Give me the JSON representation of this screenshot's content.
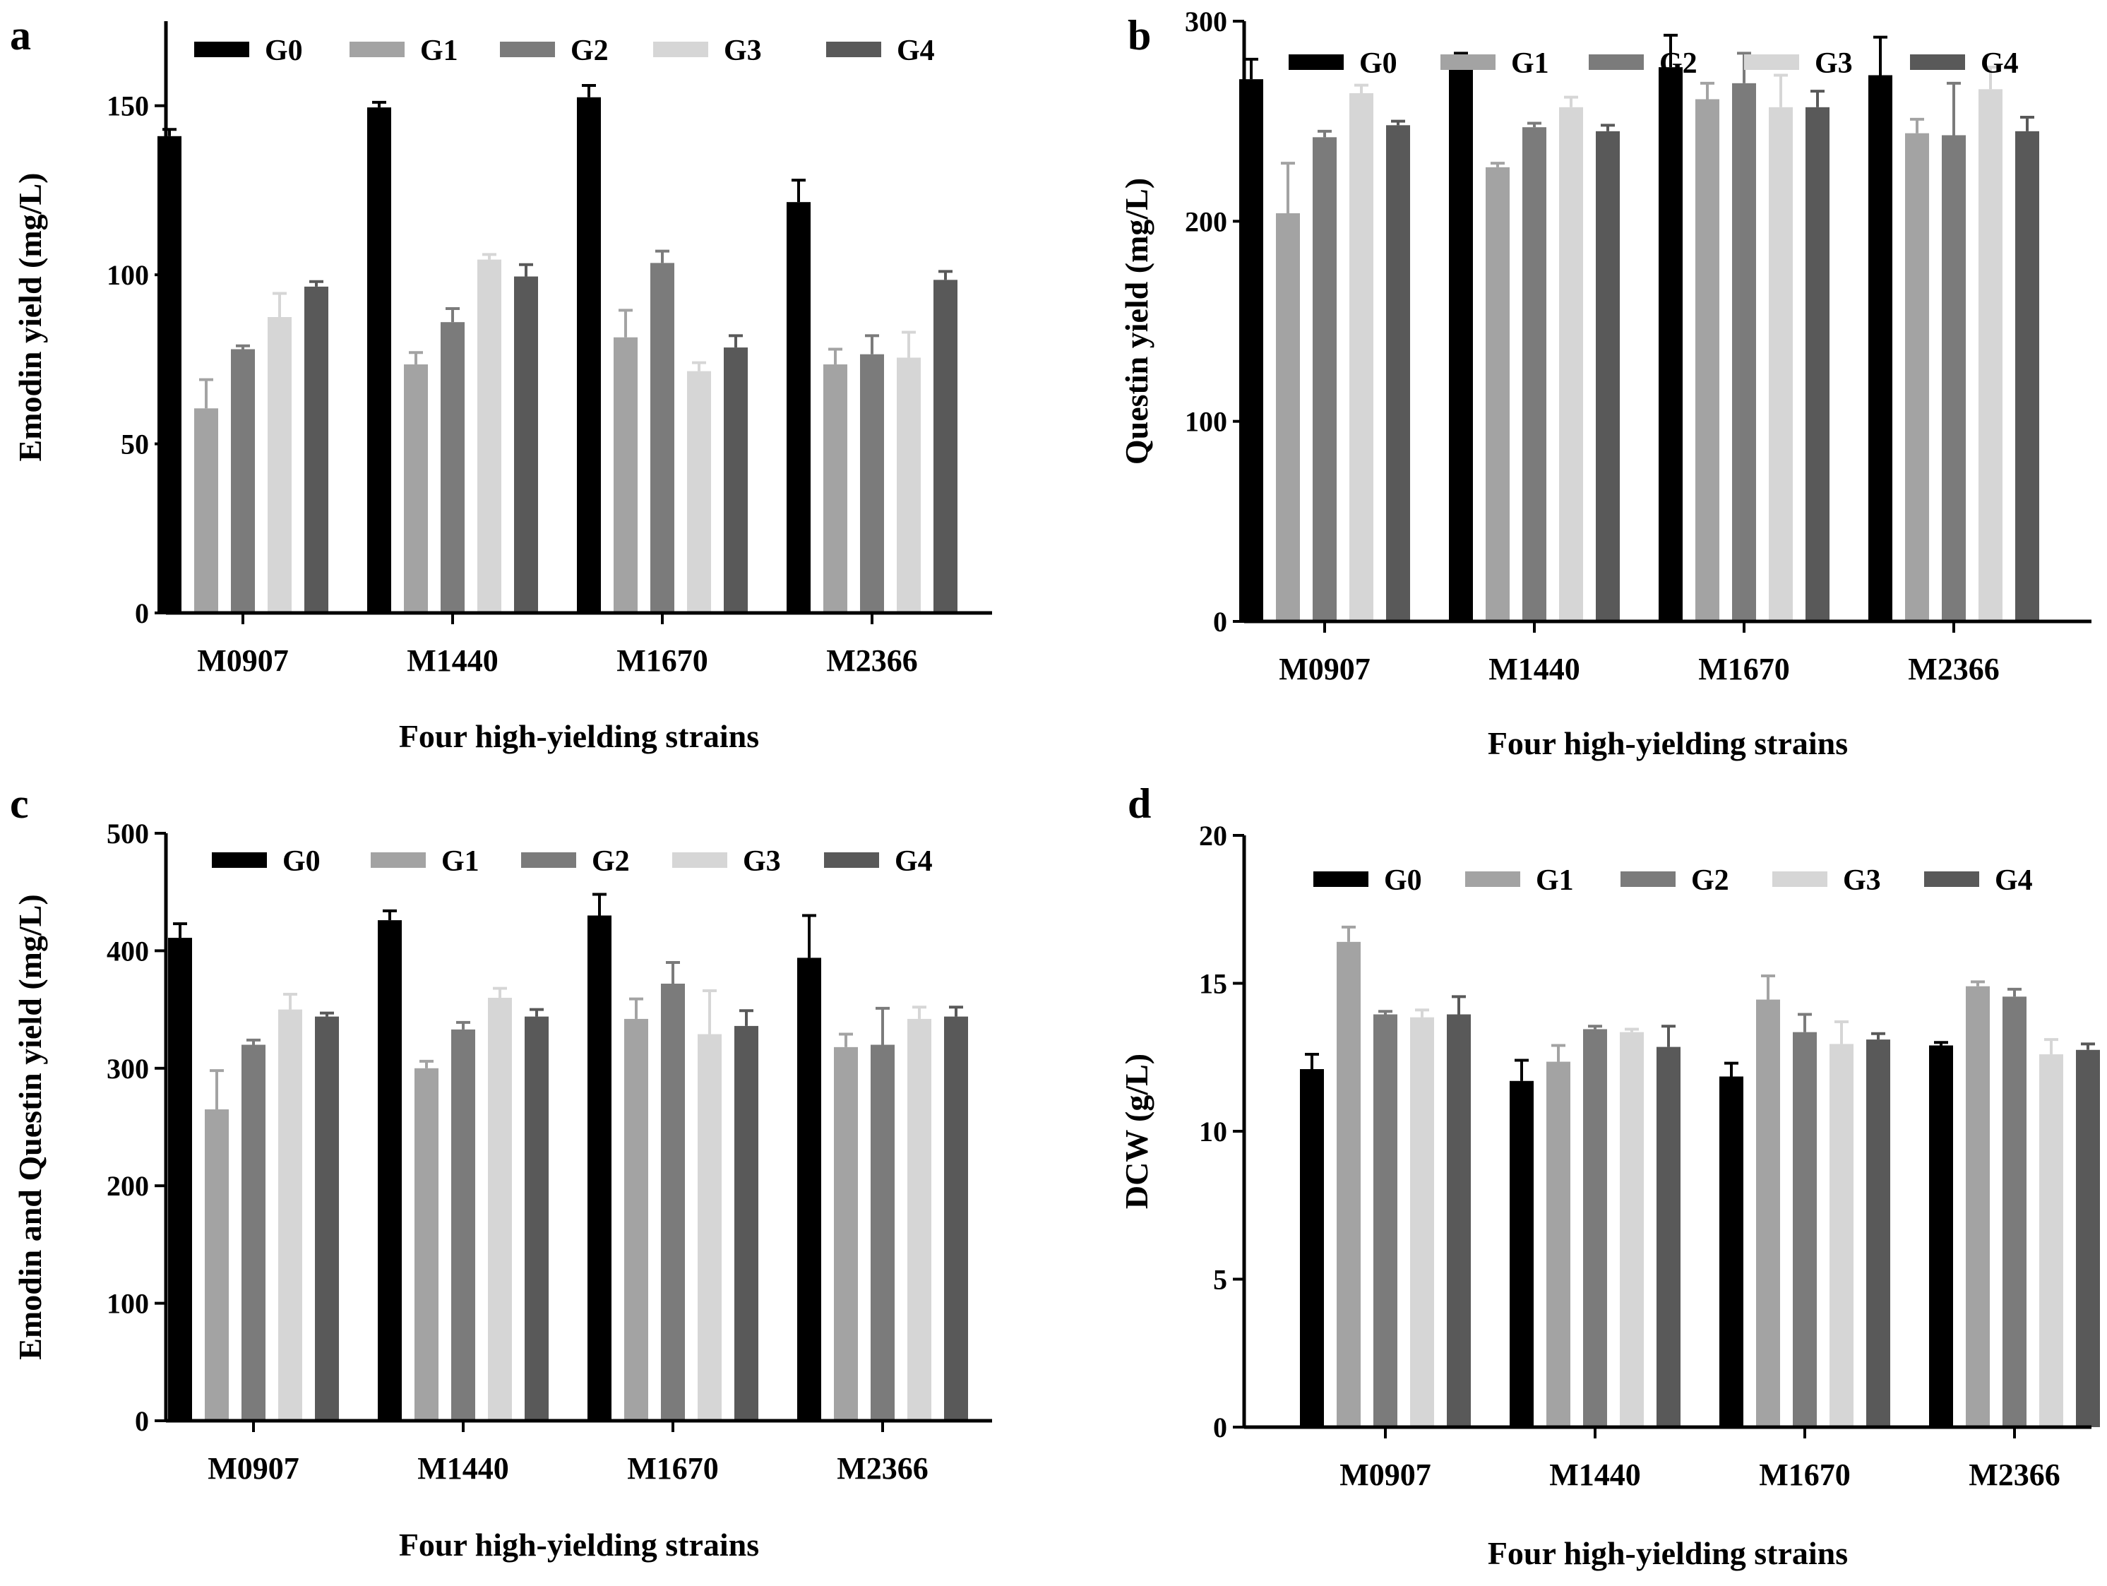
{
  "figure": {
    "group_names": [
      "G0",
      "G1",
      "G2",
      "G3",
      "G4"
    ],
    "group_colors": [
      "#000000",
      "#a3a3a3",
      "#7b7b7b",
      "#d6d6d6",
      "#595959"
    ]
  },
  "chart_data": [
    {
      "panel": "a",
      "type": "bar",
      "title": "",
      "xlabel": "Four high-yielding strains",
      "ylabel": "Emodin yield (mg/L)",
      "categories": [
        "M0907",
        "M1440",
        "M1670",
        "M2366"
      ],
      "ylim": [
        0,
        175
      ],
      "yticks": [
        0,
        50,
        100,
        150
      ],
      "legend_position": "top",
      "series": [
        {
          "name": "G0",
          "values": [
            141,
            149.5,
            152.5,
            121.5
          ],
          "errors": [
            2,
            1.5,
            3.5,
            6.5
          ]
        },
        {
          "name": "G1",
          "values": [
            60.5,
            73.5,
            81.5,
            73.5
          ],
          "errors": [
            8.5,
            3.5,
            8,
            4.5
          ]
        },
        {
          "name": "G2",
          "values": [
            78,
            86,
            103.5,
            76.5
          ],
          "errors": [
            1,
            4,
            3.5,
            5.5
          ]
        },
        {
          "name": "G3",
          "values": [
            87.5,
            104.5,
            71.5,
            75.5
          ],
          "errors": [
            7,
            1.5,
            2.5,
            7.5
          ]
        },
        {
          "name": "G4",
          "values": [
            96.5,
            99.5,
            78.5,
            98.5
          ],
          "errors": [
            1.5,
            3.5,
            3.5,
            2.5
          ]
        }
      ]
    },
    {
      "panel": "b",
      "type": "bar",
      "title": "",
      "xlabel": "Four high-yielding strains",
      "ylabel": "Questin yield (mg/L)",
      "categories": [
        "M0907",
        "M1440",
        "M1670",
        "M2366"
      ],
      "ylim": [
        0,
        300
      ],
      "yticks": [
        0,
        100,
        200,
        300
      ],
      "legend_position": "top",
      "series": [
        {
          "name": "G0",
          "values": [
            271,
            277,
            277,
            273
          ],
          "errors": [
            10,
            7,
            16,
            19
          ]
        },
        {
          "name": "G1",
          "values": [
            204,
            227,
            261,
            244
          ],
          "errors": [
            25,
            2,
            8,
            7
          ]
        },
        {
          "name": "G2",
          "values": [
            242,
            247,
            269,
            243
          ],
          "errors": [
            3,
            2,
            15,
            26
          ]
        },
        {
          "name": "G3",
          "values": [
            264,
            257,
            257,
            266
          ],
          "errors": [
            4,
            5,
            16,
            11
          ]
        },
        {
          "name": "G4",
          "values": [
            248,
            245,
            257,
            245
          ],
          "errors": [
            2,
            3,
            8,
            7
          ]
        }
      ]
    },
    {
      "panel": "c",
      "type": "bar",
      "title": "",
      "xlabel": "Four high-yielding strains",
      "ylabel": "Emodin and Questin yield (mg/L)",
      "categories": [
        "M0907",
        "M1440",
        "M1670",
        "M2366"
      ],
      "ylim": [
        0,
        500
      ],
      "yticks": [
        0,
        100,
        200,
        300,
        400,
        500
      ],
      "legend_position": "top",
      "series": [
        {
          "name": "G0",
          "values": [
            411,
            426,
            430,
            394
          ],
          "errors": [
            12,
            8,
            18,
            36
          ]
        },
        {
          "name": "G1",
          "values": [
            265,
            300,
            342,
            318
          ],
          "errors": [
            33,
            6,
            17,
            11
          ]
        },
        {
          "name": "G2",
          "values": [
            320,
            333,
            372,
            320
          ],
          "errors": [
            4,
            6,
            18,
            31
          ]
        },
        {
          "name": "G3",
          "values": [
            350,
            360,
            329,
            342
          ],
          "errors": [
            13,
            8,
            37,
            10
          ]
        },
        {
          "name": "G4",
          "values": [
            344,
            344,
            336,
            344
          ],
          "errors": [
            3,
            6,
            13,
            8
          ]
        }
      ]
    },
    {
      "panel": "d",
      "type": "bar",
      "title": "",
      "xlabel": "Four high-yielding strains",
      "ylabel": "DCW (g/L)",
      "categories": [
        "M0907",
        "M1440",
        "M1670",
        "M2366"
      ],
      "ylim": [
        0,
        20
      ],
      "yticks": [
        0,
        5,
        10,
        15,
        20
      ],
      "legend_position": "top",
      "series": [
        {
          "name": "G0",
          "values": [
            12.1,
            11.7,
            11.85,
            12.9
          ],
          "errors": [
            0.5,
            0.7,
            0.45,
            0.1
          ]
        },
        {
          "name": "G1",
          "values": [
            16.4,
            12.35,
            14.45,
            14.9
          ],
          "errors": [
            0.5,
            0.55,
            0.8,
            0.15
          ]
        },
        {
          "name": "G2",
          "values": [
            13.95,
            13.45,
            13.35,
            14.55
          ],
          "errors": [
            0.1,
            0.1,
            0.6,
            0.25
          ]
        },
        {
          "name": "G3",
          "values": [
            13.85,
            13.35,
            12.95,
            12.6
          ],
          "errors": [
            0.25,
            0.1,
            0.75,
            0.5
          ]
        },
        {
          "name": "G4",
          "values": [
            13.95,
            12.85,
            13.1,
            12.75
          ],
          "errors": [
            0.6,
            0.7,
            0.2,
            0.2
          ]
        }
      ]
    }
  ]
}
